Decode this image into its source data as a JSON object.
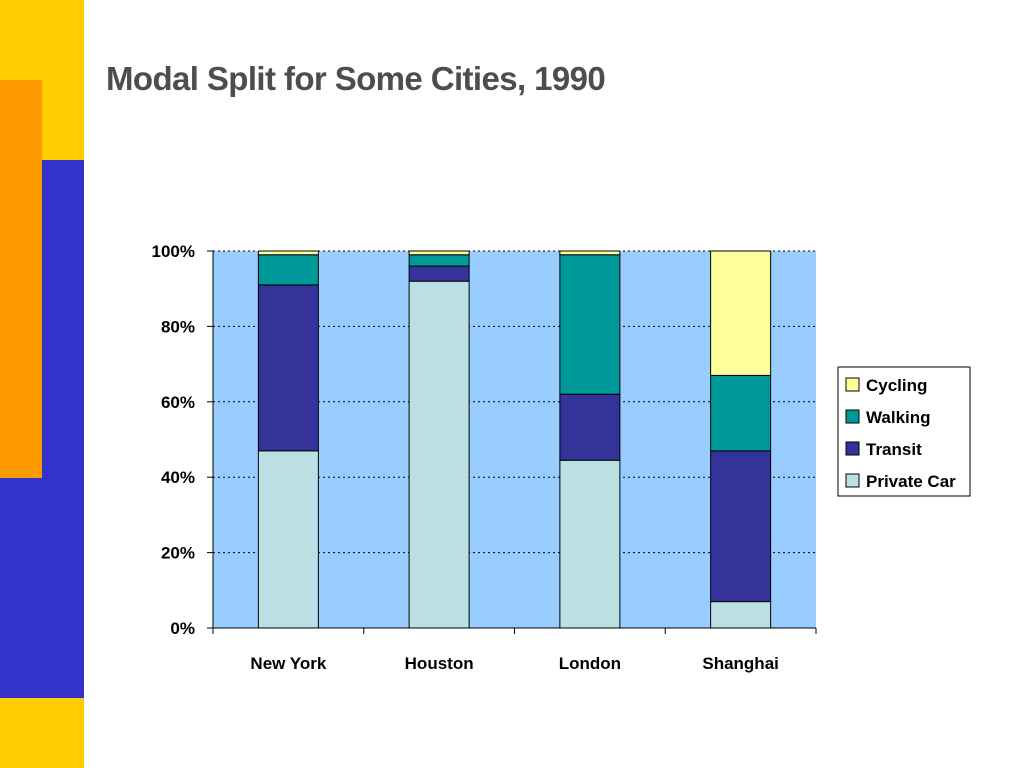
{
  "slide": {
    "title": "Modal Split for Some Cities, 1990"
  },
  "colors": {
    "left_stripe_yellow": "#FFCC00",
    "left_stripe_blue": "#3333CC",
    "left_stripe_orange": "#FF9900",
    "plot_background": "#99CCFF",
    "Private Car": "#BBE0E3",
    "Transit": "#333399",
    "Walking": "#009999",
    "Cycling": "#FFFF99"
  },
  "chart_data": {
    "type": "bar",
    "stacked": true,
    "title": "",
    "xlabel": "",
    "ylabel": "",
    "categories": [
      "New York",
      "Houston",
      "London",
      "Shanghai"
    ],
    "series": [
      {
        "name": "Private Car",
        "values": [
          47,
          92,
          44.5,
          7
        ]
      },
      {
        "name": "Transit",
        "values": [
          44,
          4,
          17.5,
          40
        ]
      },
      {
        "name": "Walking",
        "values": [
          8,
          3,
          37,
          20
        ]
      },
      {
        "name": "Cycling",
        "values": [
          1,
          1,
          1,
          33
        ]
      }
    ],
    "ylim": [
      0,
      100
    ],
    "y_ticks": [
      "0%",
      "20%",
      "40%",
      "60%",
      "80%",
      "100%"
    ],
    "y_tick_values": [
      0,
      20,
      40,
      60,
      80,
      100
    ],
    "grid": true,
    "grid_style": "dotted",
    "legend_position": "right",
    "legend_order": [
      "Cycling",
      "Walking",
      "Transit",
      "Private Car"
    ]
  }
}
